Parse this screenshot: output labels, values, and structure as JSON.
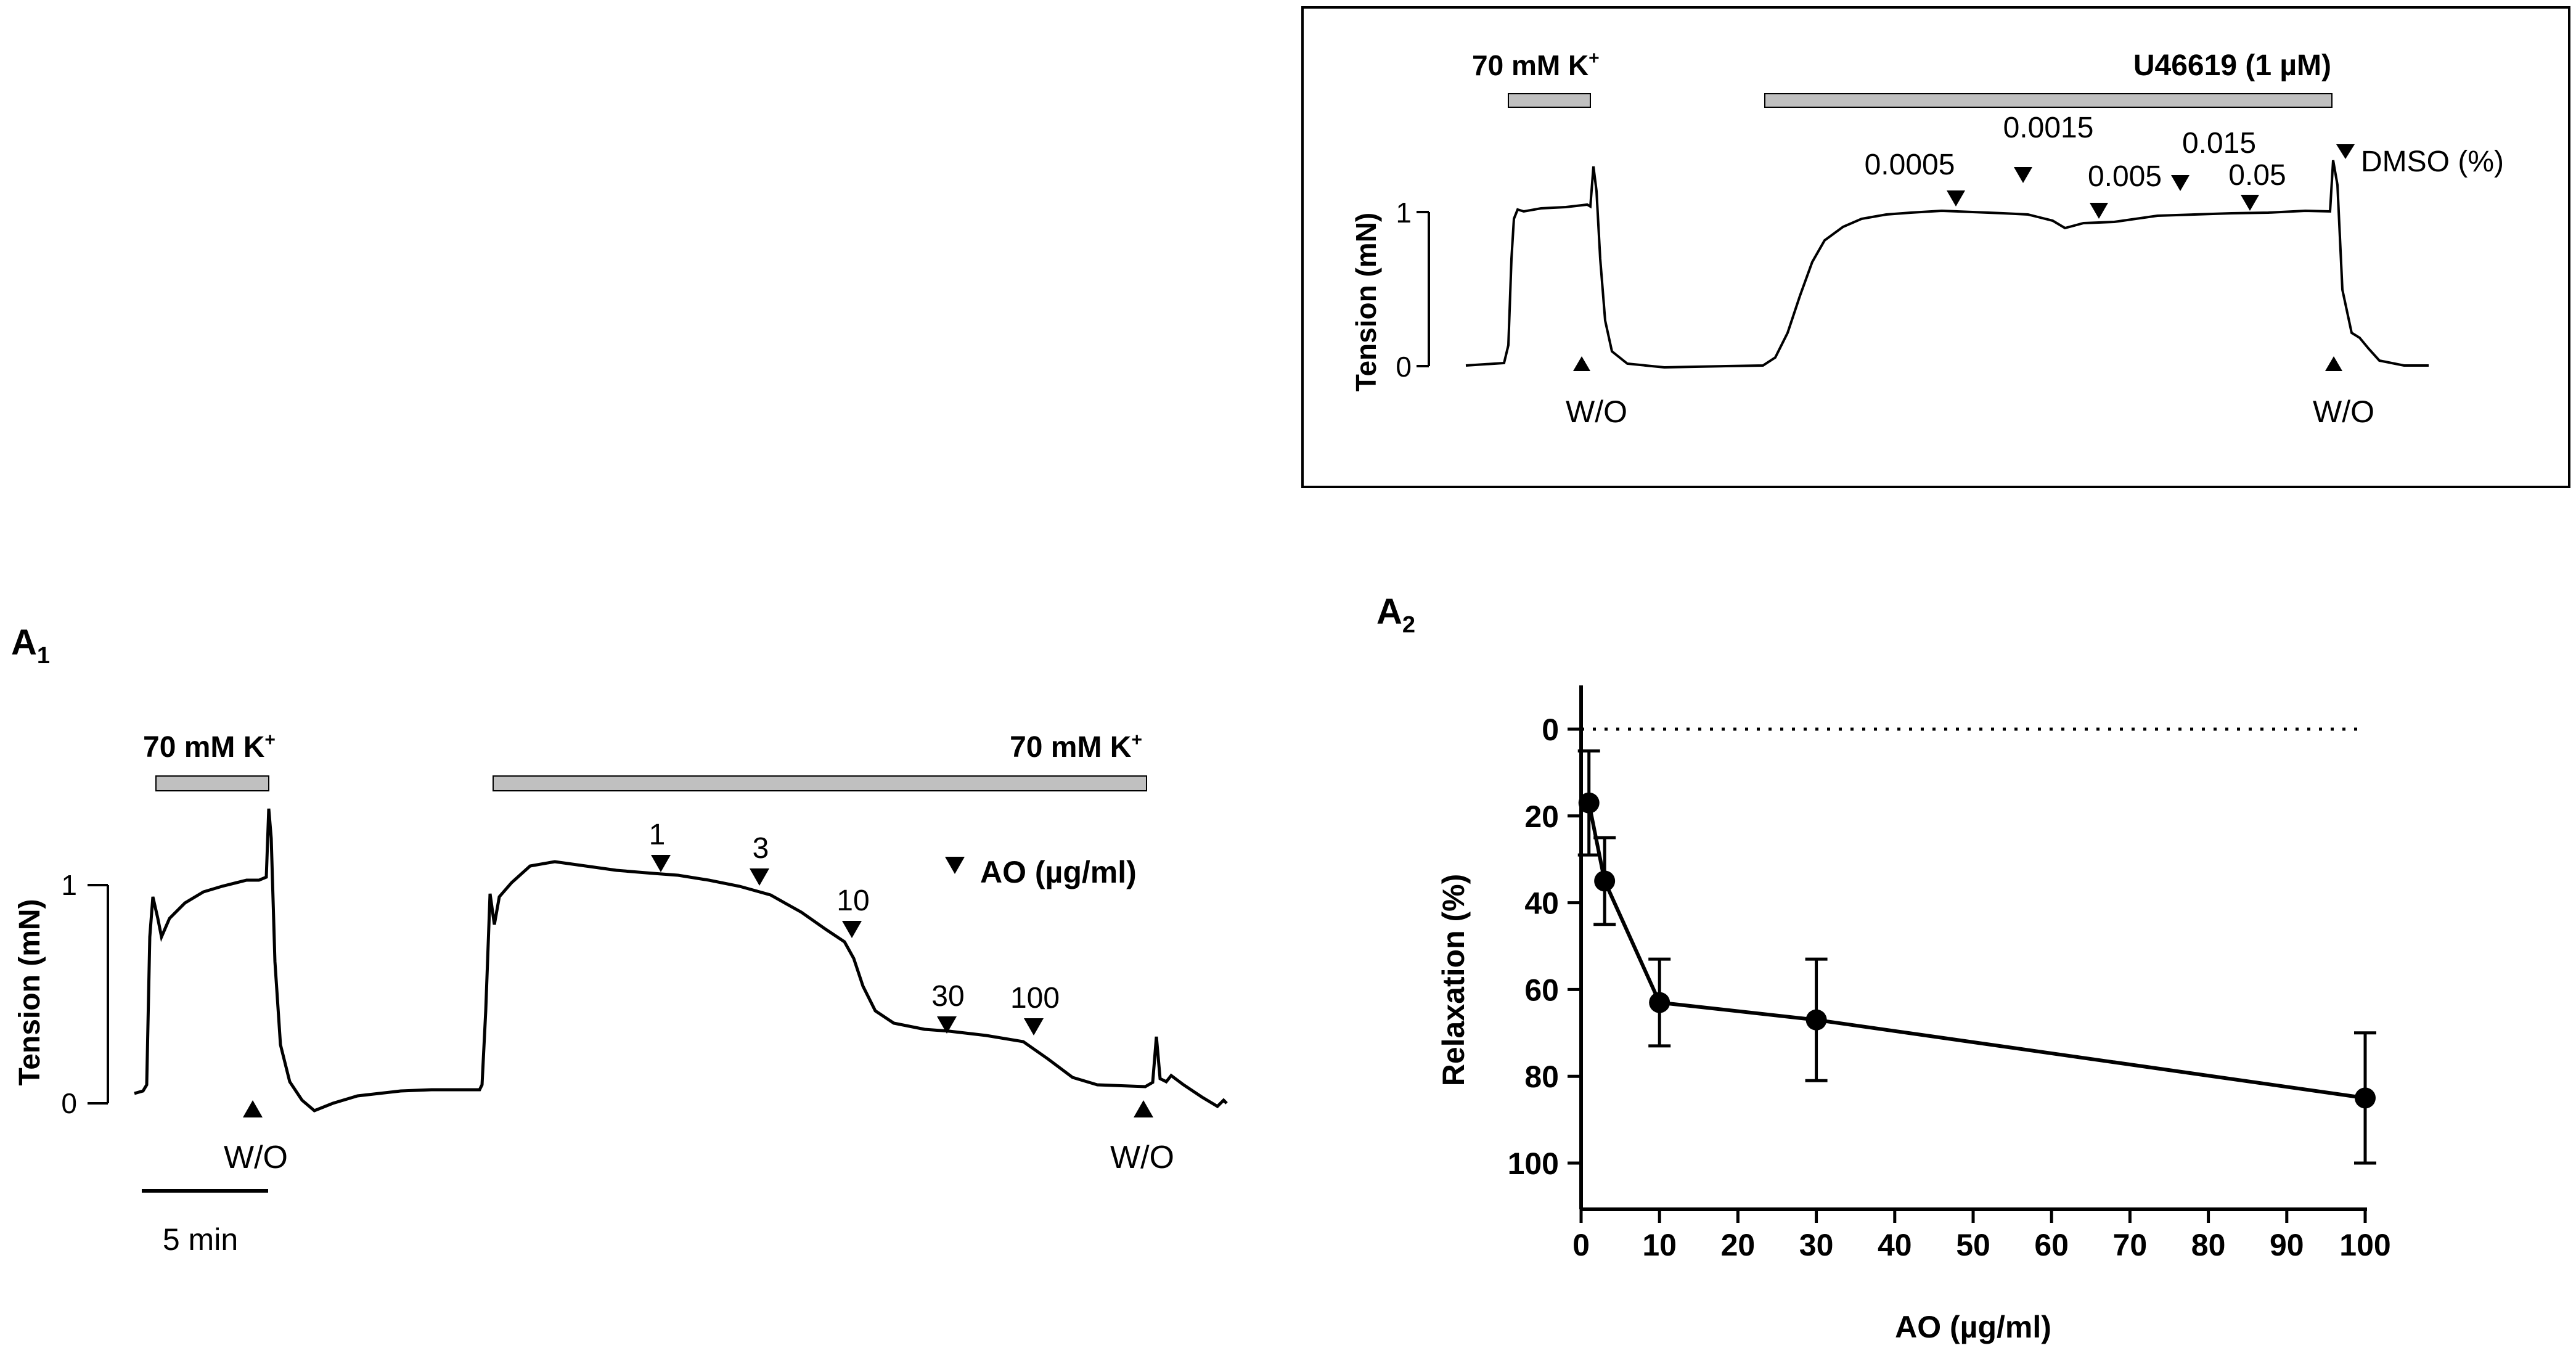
{
  "colors": {
    "ink": "#000000",
    "bar": "#c0c0c0",
    "frame": "#000000"
  },
  "inset": {
    "tension_label": "Tension (mN)",
    "ytick_0": "0",
    "ytick_1": "1",
    "k_bar_label": "70 mM K",
    "k_bar_sup": "+",
    "u_bar_label": "U46619 (1 µM)",
    "wo_1": "W/O",
    "wo_2": "W/O",
    "dmso_label": "DMSO (%)",
    "doses": [
      "0.0005",
      "0.0015",
      "0.005",
      "0.015",
      "0.05"
    ]
  },
  "panel_a1": {
    "label": "A",
    "label_sub": "1",
    "tension_label": "Tension (mN)",
    "ytick_0": "0",
    "ytick_1": "1",
    "k_bar_1_label": "70 mM K",
    "k_bar_2_label": "70 mM K",
    "k_bar_sup": "+",
    "wo_1": "W/O",
    "wo_2": "W/O",
    "ao_legend": "AO (µg/ml)",
    "scale_label": "5 min",
    "doses": [
      "1",
      "3",
      "10",
      "30",
      "100"
    ]
  },
  "panel_a2": {
    "label": "A",
    "label_sub": "2"
  },
  "chart_data": {
    "type": "line",
    "title": "",
    "xlabel": "AO (µg/ml)",
    "ylabel": "Relaxation (%)",
    "xlim": [
      0,
      100
    ],
    "ylim": [
      0,
      110
    ],
    "y_inverted": true,
    "x_ticks": [
      0,
      10,
      20,
      30,
      40,
      50,
      60,
      70,
      80,
      90,
      100
    ],
    "y_ticks": [
      0,
      20,
      40,
      60,
      80,
      100
    ],
    "reference_line": {
      "y": 0,
      "style": "dotted"
    },
    "series": [
      {
        "x": [
          1,
          3,
          10,
          30,
          100
        ],
        "y": [
          17,
          35,
          63,
          67,
          85
        ],
        "error": [
          12,
          10,
          10,
          14,
          15
        ]
      }
    ]
  }
}
